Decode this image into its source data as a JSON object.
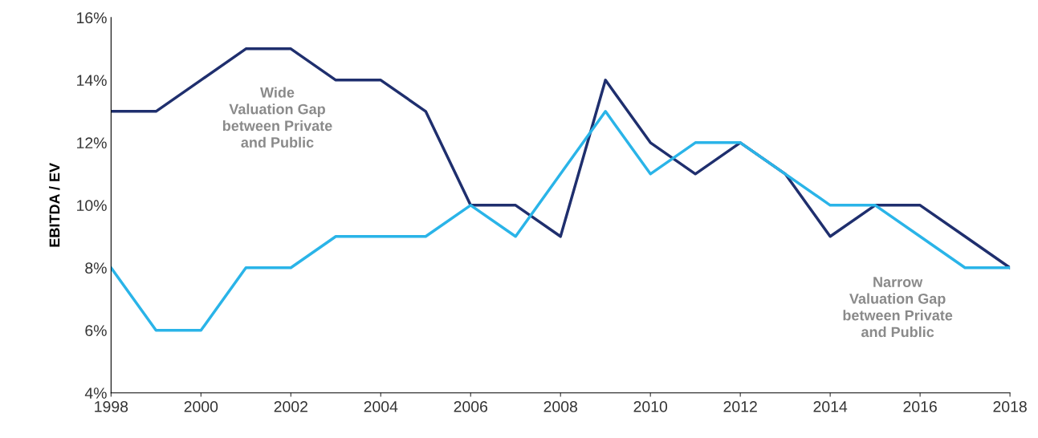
{
  "chart_data": {
    "type": "line",
    "ylabel": "EBITDA / EV",
    "x": [
      1998,
      1999,
      2000,
      2001,
      2002,
      2003,
      2004,
      2005,
      2006,
      2007,
      2008,
      2009,
      2010,
      2011,
      2012,
      2013,
      2014,
      2015,
      2016,
      2017,
      2018
    ],
    "series": [
      {
        "color": "#1f2f6e",
        "values": [
          13,
          13,
          14,
          15,
          15,
          14,
          14,
          13,
          10,
          10,
          9,
          14,
          12,
          11,
          12,
          11,
          9,
          10,
          10,
          9,
          8
        ]
      },
      {
        "color": "#2ab4e8",
        "values": [
          8,
          6,
          6,
          8,
          8,
          9,
          9,
          9,
          10,
          9,
          11,
          13,
          11,
          12,
          12,
          11,
          10,
          10,
          9,
          8,
          8
        ]
      }
    ],
    "xlim": [
      1998,
      2018
    ],
    "xticks": [
      1998,
      2000,
      2002,
      2004,
      2006,
      2008,
      2010,
      2012,
      2014,
      2016,
      2018
    ],
    "ylim": [
      4,
      16
    ],
    "yticks": [
      {
        "value": 4,
        "label": "4%"
      },
      {
        "value": 6,
        "label": "6%"
      },
      {
        "value": 8,
        "label": "8%"
      },
      {
        "value": 10,
        "label": "10%"
      },
      {
        "value": 12,
        "label": "12%"
      },
      {
        "value": 14,
        "label": "14%"
      },
      {
        "value": 16,
        "label": "16%"
      }
    ],
    "annotations": [
      "Wide\nValuation Gap\nbetween Private\nand Public",
      "Narrow\nValuation Gap\nbetween Private\nand Public"
    ],
    "grid": false,
    "marker": "none",
    "line_style": "solid"
  }
}
